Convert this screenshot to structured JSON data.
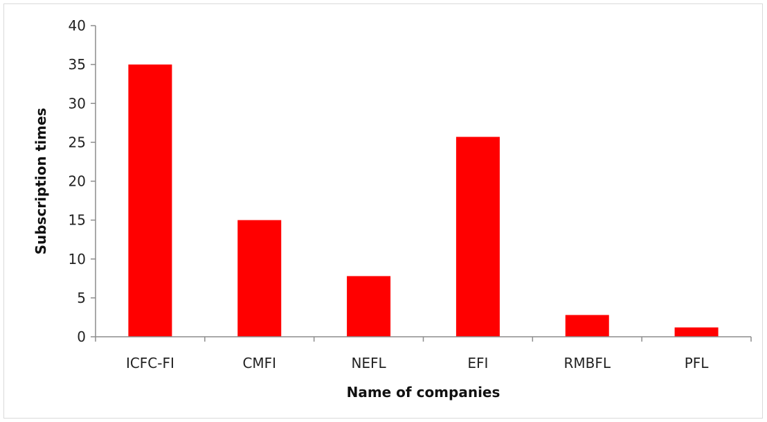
{
  "chart_data": {
    "type": "bar",
    "categories": [
      "ICFC-FI",
      "CMFI",
      "NEFL",
      "EFI",
      "RMBFL",
      "PFL"
    ],
    "values": [
      35,
      15,
      7.8,
      25.7,
      2.8,
      1.2
    ],
    "title": "",
    "xlabel": "Name of companies",
    "ylabel": "Subscription times",
    "ylim": [
      0,
      40
    ],
    "yticks": [
      0,
      5,
      10,
      15,
      20,
      25,
      30,
      35,
      40
    ],
    "grid": false,
    "legend": "none",
    "bar_color": "#ff0000"
  }
}
